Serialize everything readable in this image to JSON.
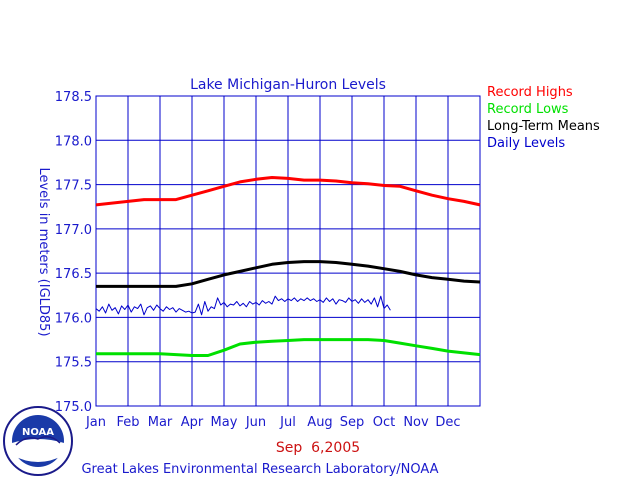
{
  "chart_data": {
    "type": "line",
    "title": "Lake Michigan-Huron Levels",
    "ylabel": "Levels in meters (IGLD85)",
    "xlabel": "",
    "ylim": [
      175.0,
      178.5
    ],
    "yticks": [
      "178.5",
      "178.0",
      "177.5",
      "177.0",
      "176.5",
      "176.0",
      "175.5",
      "175.0"
    ],
    "ytick_values": [
      178.5,
      178.0,
      177.5,
      177.0,
      176.5,
      176.0,
      175.5,
      175.0
    ],
    "xlim": [
      0,
      12
    ],
    "categories": [
      "Jan",
      "Feb",
      "Mar",
      "Apr",
      "May",
      "Jun",
      "Jul",
      "Aug",
      "Sep",
      "Oct",
      "Nov",
      "Dec"
    ],
    "grid": true,
    "legend_placement": "right",
    "date_label": "Sep  6,2005",
    "credit": "Great Lakes Environmental Research Laboratory/NOAA",
    "series": [
      {
        "name": "Record Highs",
        "color": "#ff0000",
        "x": [
          0,
          1,
          1.5,
          2,
          2.5,
          3,
          3.5,
          4,
          4.5,
          5,
          5.5,
          6,
          6.5,
          7,
          7.5,
          8,
          8.5,
          9,
          9.5,
          10,
          10.5,
          11,
          11.5,
          12
        ],
        "values": [
          177.27,
          177.31,
          177.33,
          177.33,
          177.33,
          177.38,
          177.43,
          177.48,
          177.53,
          177.56,
          177.58,
          177.57,
          177.55,
          177.55,
          177.54,
          177.52,
          177.51,
          177.49,
          177.48,
          177.43,
          177.38,
          177.34,
          177.31,
          177.27
        ]
      },
      {
        "name": "Record Lows",
        "color": "#00e000",
        "x": [
          0,
          1,
          2,
          2.5,
          3,
          3.5,
          4,
          4.5,
          5,
          5.5,
          6,
          6.5,
          7,
          7.5,
          8,
          8.5,
          9,
          9.5,
          10,
          10.5,
          11,
          11.5,
          12
        ],
        "values": [
          175.59,
          175.59,
          175.59,
          175.58,
          175.57,
          175.57,
          175.63,
          175.7,
          175.72,
          175.73,
          175.74,
          175.75,
          175.75,
          175.75,
          175.75,
          175.75,
          175.74,
          175.71,
          175.68,
          175.65,
          175.62,
          175.6,
          175.58
        ]
      },
      {
        "name": "Long-Term Means",
        "color": "#000000",
        "x": [
          0,
          1,
          2,
          2.5,
          3,
          3.5,
          4,
          4.5,
          5,
          5.5,
          6,
          6.5,
          7,
          7.5,
          8,
          8.5,
          9,
          9.5,
          10,
          10.5,
          11,
          11.5,
          12
        ],
        "values": [
          176.35,
          176.35,
          176.35,
          176.35,
          176.38,
          176.43,
          176.48,
          176.52,
          176.56,
          176.6,
          176.62,
          176.63,
          176.63,
          176.62,
          176.6,
          176.58,
          176.55,
          176.52,
          176.48,
          176.45,
          176.43,
          176.41,
          176.4
        ]
      },
      {
        "name": "Daily Levels",
        "color": "#0000cc",
        "x": [
          0,
          0.1,
          0.2,
          0.3,
          0.4,
          0.5,
          0.6,
          0.7,
          0.8,
          0.9,
          1.0,
          1.1,
          1.2,
          1.3,
          1.4,
          1.5,
          1.6,
          1.7,
          1.8,
          1.9,
          2.0,
          2.1,
          2.2,
          2.3,
          2.4,
          2.5,
          2.6,
          2.7,
          2.8,
          2.9,
          3.0,
          3.1,
          3.2,
          3.3,
          3.4,
          3.5,
          3.6,
          3.7,
          3.8,
          3.9,
          4.0,
          4.1,
          4.2,
          4.3,
          4.4,
          4.5,
          4.6,
          4.7,
          4.8,
          4.9,
          5.0,
          5.1,
          5.2,
          5.3,
          5.4,
          5.5,
          5.6,
          5.7,
          5.8,
          5.9,
          6.0,
          6.1,
          6.2,
          6.3,
          6.4,
          6.5,
          6.6,
          6.7,
          6.8,
          6.9,
          7.0,
          7.1,
          7.2,
          7.3,
          7.4,
          7.5,
          7.6,
          7.7,
          7.8,
          7.9,
          8.0,
          8.1,
          8.2,
          8.3,
          8.4,
          8.5,
          8.6,
          8.7,
          8.8,
          8.9,
          9.0,
          9.1,
          9.2
        ],
        "values": [
          176.1,
          176.07,
          176.12,
          176.05,
          176.15,
          176.08,
          176.11,
          176.04,
          176.13,
          176.09,
          176.14,
          176.06,
          176.12,
          176.1,
          176.15,
          176.03,
          176.11,
          176.13,
          176.08,
          176.14,
          176.1,
          176.07,
          176.12,
          176.09,
          176.11,
          176.06,
          176.1,
          176.08,
          176.06,
          176.07,
          176.05,
          176.06,
          176.15,
          176.03,
          176.18,
          176.07,
          176.12,
          176.1,
          176.22,
          176.14,
          176.17,
          176.12,
          176.15,
          176.14,
          176.18,
          176.13,
          176.16,
          176.12,
          176.18,
          176.15,
          176.17,
          176.14,
          176.19,
          176.16,
          176.18,
          176.15,
          176.24,
          176.19,
          176.21,
          176.18,
          176.21,
          176.19,
          176.22,
          176.18,
          176.21,
          176.19,
          176.22,
          176.19,
          176.21,
          176.18,
          176.2,
          176.17,
          176.22,
          176.18,
          176.21,
          176.15,
          176.2,
          176.19,
          176.17,
          176.22,
          176.18,
          176.2,
          176.16,
          176.21,
          176.17,
          176.2,
          176.15,
          176.22,
          176.12,
          176.24,
          176.1,
          176.14,
          176.08
        ]
      }
    ]
  }
}
